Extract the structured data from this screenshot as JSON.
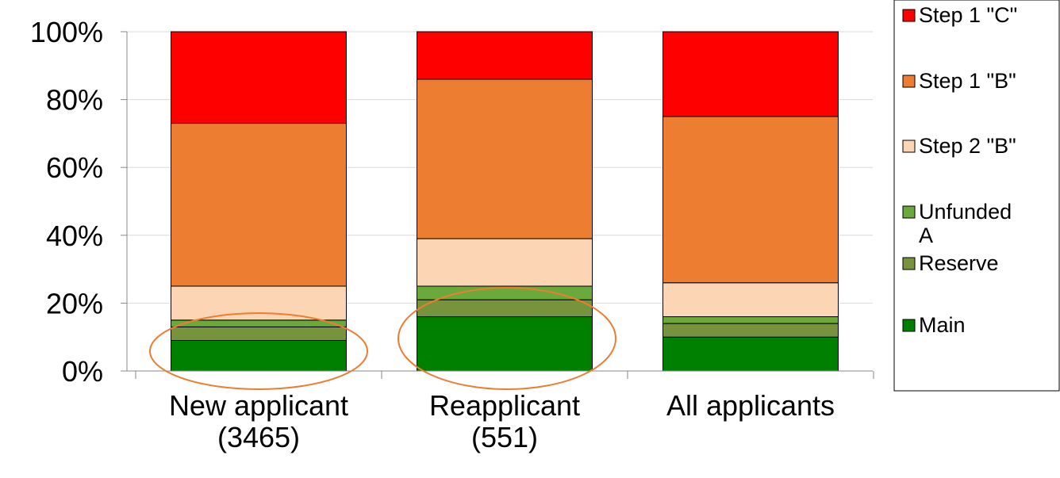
{
  "chart_data": {
    "type": "stacked_bar",
    "categories": [
      "New applicant\n(3465)",
      "Reapplicant\n(551)",
      "All applicants"
    ],
    "series": [
      {
        "name": "Main",
        "color": "#008000",
        "values": [
          9,
          16,
          10
        ]
      },
      {
        "name": "Reserve",
        "color": "#77933c",
        "values": [
          4,
          5,
          4
        ]
      },
      {
        "name": "Unfunded\nA",
        "color": "#6aaa3c",
        "values": [
          2,
          4,
          2
        ]
      },
      {
        "name": "Step 2 \"B\"",
        "color": "#fcd5b5",
        "values": [
          10,
          14,
          10
        ]
      },
      {
        "name": "Step 1 \"B\"",
        "color": "#ed7d31",
        "values": [
          48,
          47,
          49
        ]
      },
      {
        "name": "Step 1 \"C\"",
        "color": "#ff0000",
        "values": [
          27,
          14,
          25
        ]
      }
    ],
    "ylim": [
      0,
      100
    ],
    "yticks": [
      {
        "value": 0,
        "label": "0%"
      },
      {
        "value": 20,
        "label": "20%"
      },
      {
        "value": 40,
        "label": "40%"
      },
      {
        "value": 60,
        "label": "60%"
      },
      {
        "value": 80,
        "label": "80%"
      },
      {
        "value": 100,
        "label": "100%"
      }
    ],
    "grid": true,
    "legend": "right"
  }
}
